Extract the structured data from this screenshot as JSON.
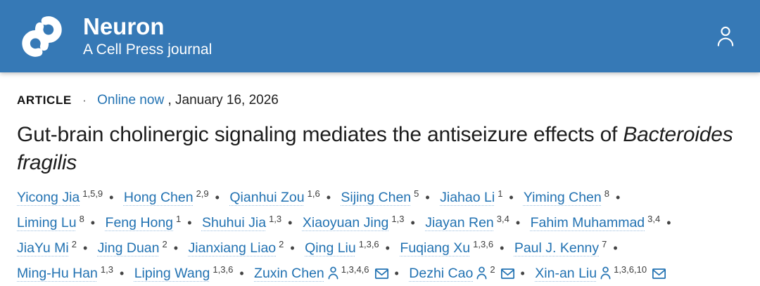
{
  "colors": {
    "header_bg": "#3679b6",
    "link_blue": "#2272b2",
    "underline_dotted": "#9dbedd"
  },
  "header": {
    "journal": "Neuron",
    "subtitle": "A Cell Press journal",
    "logo_icon": "cell-press-logo",
    "account_icon": "account-icon"
  },
  "meta": {
    "article_label": "ARTICLE",
    "dot": "·",
    "online_link": "Online now",
    "date_text": ", January 16, 2026"
  },
  "title": {
    "main": "Gut-brain cholinergic signaling mediates the antiseizure effects of",
    "italic": "Bacteroides fragilis"
  },
  "authors": {
    "separator": "•",
    "list": [
      {
        "name": "Yicong Jia",
        "affiliations": "1,5,9"
      },
      {
        "name": "Hong Chen",
        "affiliations": "2,9"
      },
      {
        "name": "Qianhui Zou",
        "affiliations": "1,6"
      },
      {
        "name": "Sijing Chen",
        "affiliations": "5"
      },
      {
        "name": "Jiahao Li",
        "affiliations": "1"
      },
      {
        "name": "Yiming Chen",
        "affiliations": "8"
      },
      {
        "name": "Liming Lu",
        "affiliations": "8"
      },
      {
        "name": "Feng Hong",
        "affiliations": "1"
      },
      {
        "name": "Shuhui Jia",
        "affiliations": "1,3"
      },
      {
        "name": "Xiaoyuan Jing",
        "affiliations": "1,3"
      },
      {
        "name": "Jiayan Ren",
        "affiliations": "3,4"
      },
      {
        "name": "Fahim Muhammad",
        "affiliations": "3,4"
      },
      {
        "name": "JiaYu Mi",
        "affiliations": "2"
      },
      {
        "name": "Jing Duan",
        "affiliations": "2"
      },
      {
        "name": "Jianxiang Liao",
        "affiliations": "2"
      },
      {
        "name": "Qing Liu",
        "affiliations": "1,3,6"
      },
      {
        "name": "Fuqiang Xu",
        "affiliations": "1,3,6"
      },
      {
        "name": "Paul J. Kenny",
        "affiliations": "7"
      },
      {
        "name": "Ming-Hu Han",
        "affiliations": "1,3"
      },
      {
        "name": "Liping Wang",
        "affiliations": "1,3,6"
      },
      {
        "name": "Zuxin Chen",
        "affiliations": "1,3,4,6",
        "profile_icon": true,
        "email_icon": true
      },
      {
        "name": "Dezhi Cao",
        "affiliations": "2",
        "profile_icon": true,
        "email_icon": true
      },
      {
        "name": "Xin-an Liu",
        "affiliations": "1,3,6,10",
        "profile_icon": true,
        "email_icon": true
      }
    ]
  }
}
